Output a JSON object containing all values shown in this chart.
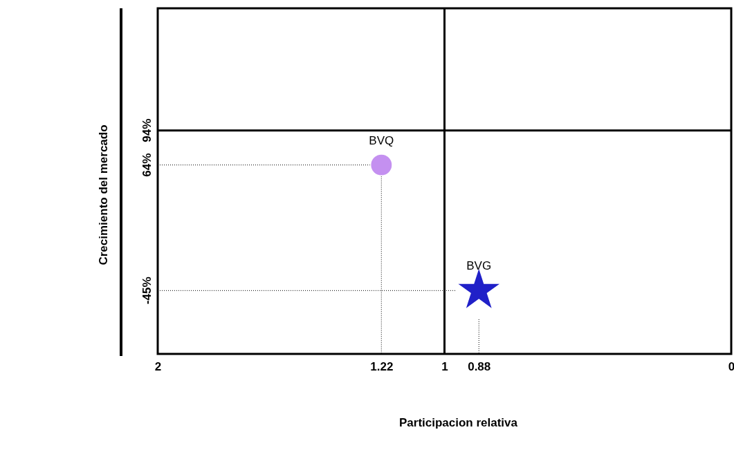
{
  "chart_data": {
    "type": "scatter",
    "xlabel": "Participacion relativa",
    "ylabel": "Crecimiento del mercado",
    "xlim": [
      2,
      0
    ],
    "xticks": [
      2,
      1.22,
      1,
      0.88,
      0
    ],
    "ylim": [
      -100,
      200
    ],
    "yticks": [
      {
        "value": -45,
        "label": "-45%"
      },
      {
        "value": 64,
        "label": "64%"
      },
      {
        "value": 94,
        "label": "94%"
      }
    ],
    "series": [
      {
        "name": "BVQ",
        "color": "#c490f0",
        "marker": "circle",
        "x": [
          1.22
        ],
        "values": [
          64
        ]
      },
      {
        "name": "BVG",
        "color": "#2020c8",
        "marker": "star",
        "x": [
          0.88
        ],
        "values": [
          -45
        ]
      },
      {
        "type": "line",
        "color": "#000000",
        "line_style": "dotted",
        "marker": "none",
        "x": [
          2,
          1.26
        ],
        "values": [
          64,
          64
        ]
      },
      {
        "type": "line",
        "color": "#000000",
        "line_style": "dotted",
        "marker": "none",
        "x": [
          1.22,
          1.22
        ],
        "values": [
          54,
          -100
        ]
      },
      {
        "type": "line",
        "color": "#000000",
        "line_style": "dotted",
        "marker": "none",
        "x": [
          2,
          0.96
        ],
        "values": [
          -45,
          -45
        ]
      },
      {
        "type": "line",
        "color": "#000000",
        "line_style": "dotted",
        "marker": "none",
        "x": [
          0.88,
          0.88
        ],
        "values": [
          -70,
          -100
        ]
      }
    ],
    "ref_lines": [
      {
        "axis": "x",
        "value": 1,
        "color": "#000000"
      },
      {
        "axis": "y",
        "value": 94,
        "color": "#000000"
      }
    ],
    "grid": false
  }
}
